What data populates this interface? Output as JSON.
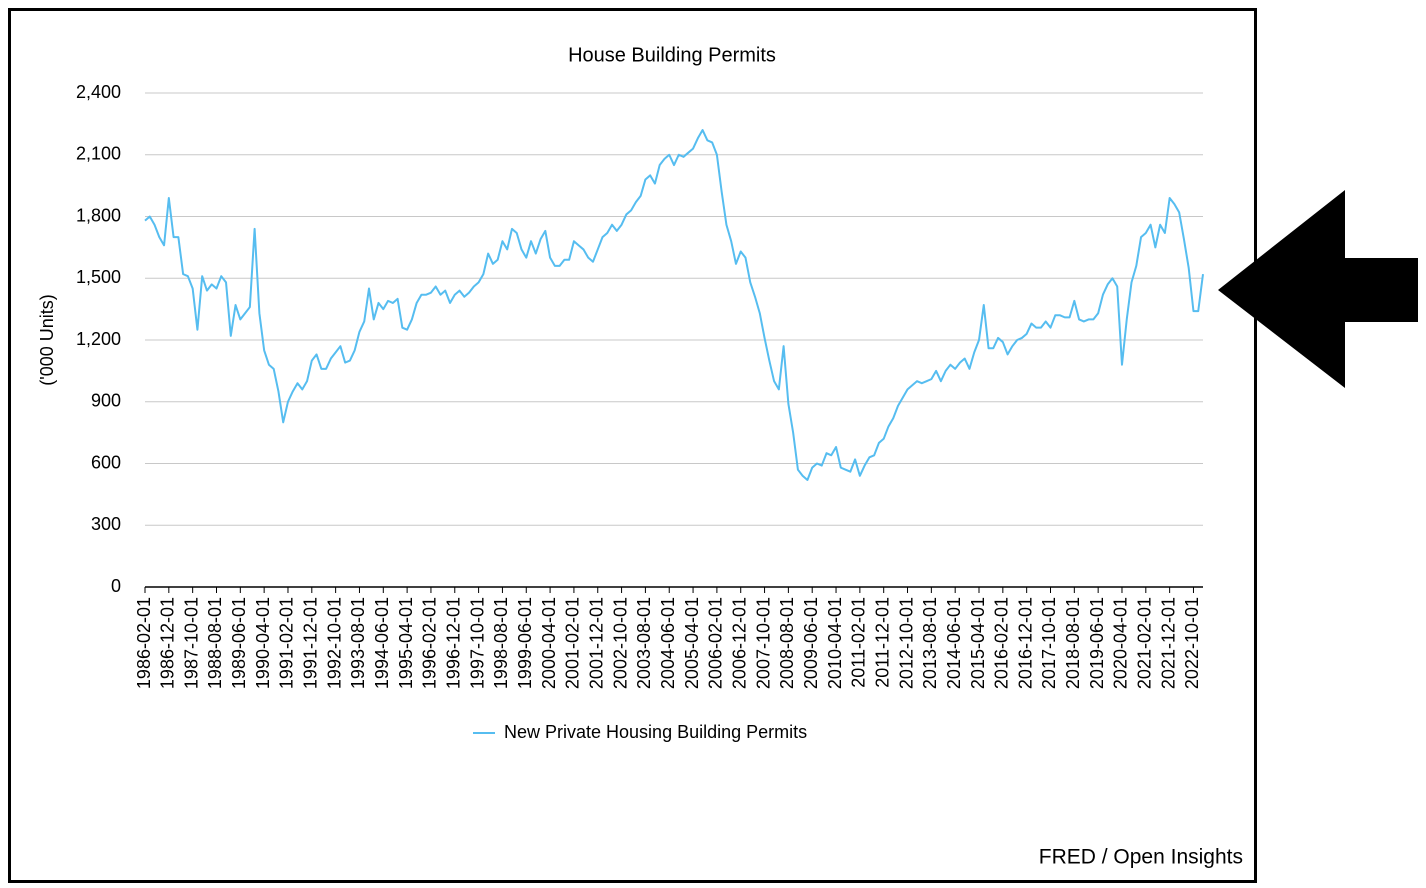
{
  "chart_data": {
    "type": "line",
    "title": "House Building Permits",
    "y_label": "('000 Units)",
    "source": "FRED / Open Insights",
    "categories": [
      "1986-02-01",
      null,
      null,
      null,
      null,
      "1986-12-01",
      null,
      null,
      null,
      null,
      "1987-10-01",
      null,
      null,
      null,
      null,
      "1988-08-01",
      null,
      null,
      null,
      null,
      "1989-06-01",
      null,
      null,
      null,
      null,
      "1990-04-01",
      null,
      null,
      null,
      null,
      "1991-02-01",
      null,
      null,
      null,
      null,
      "1991-12-01",
      null,
      null,
      null,
      null,
      "1992-10-01",
      null,
      null,
      null,
      null,
      "1993-08-01",
      null,
      null,
      null,
      null,
      "1994-06-01",
      null,
      null,
      null,
      null,
      "1995-04-01",
      null,
      null,
      null,
      null,
      "1996-02-01",
      null,
      null,
      null,
      null,
      "1996-12-01",
      null,
      null,
      null,
      null,
      "1997-10-01",
      null,
      null,
      null,
      null,
      "1998-08-01",
      null,
      null,
      null,
      null,
      "1999-06-01",
      null,
      null,
      null,
      null,
      "2000-04-01",
      null,
      null,
      null,
      null,
      "2001-02-01",
      null,
      null,
      null,
      null,
      "2001-12-01",
      null,
      null,
      null,
      null,
      "2002-10-01",
      null,
      null,
      null,
      null,
      "2003-08-01",
      null,
      null,
      null,
      null,
      "2004-06-01",
      null,
      null,
      null,
      null,
      "2005-04-01",
      null,
      null,
      null,
      null,
      "2006-02-01",
      null,
      null,
      null,
      null,
      "2006-12-01",
      null,
      null,
      null,
      null,
      "2007-10-01",
      null,
      null,
      null,
      null,
      "2008-08-01",
      null,
      null,
      null,
      null,
      "2009-06-01",
      null,
      null,
      null,
      null,
      "2010-04-01",
      null,
      null,
      null,
      null,
      "2011-02-01",
      null,
      null,
      null,
      null,
      "2011-12-01",
      null,
      null,
      null,
      null,
      "2012-10-01",
      null,
      null,
      null,
      null,
      "2013-08-01",
      null,
      null,
      null,
      null,
      "2014-06-01",
      null,
      null,
      null,
      null,
      "2015-04-01",
      null,
      null,
      null,
      null,
      "2016-02-01",
      null,
      null,
      null,
      null,
      "2016-12-01",
      null,
      null,
      null,
      null,
      "2017-10-01",
      null,
      null,
      null,
      null,
      "2018-08-01",
      null,
      null,
      null,
      null,
      "2019-06-01",
      null,
      null,
      null,
      null,
      "2020-04-01",
      null,
      null,
      null,
      null,
      "2021-02-01",
      null,
      null,
      null,
      null,
      "2021-12-01",
      null,
      null,
      null,
      null,
      "2022-10-01",
      null,
      null
    ],
    "series": [
      {
        "name": "New Private Housing Building Permits",
        "color": "#56bdf0",
        "values": [
          1780,
          1800,
          1760,
          1700,
          1660,
          1890,
          1700,
          1700,
          1520,
          1510,
          1450,
          1250,
          1510,
          1440,
          1470,
          1450,
          1510,
          1480,
          1220,
          1370,
          1300,
          1330,
          1360,
          1740,
          1330,
          1150,
          1080,
          1060,
          950,
          800,
          900,
          950,
          990,
          960,
          1000,
          1100,
          1130,
          1060,
          1060,
          1110,
          1140,
          1170,
          1090,
          1100,
          1150,
          1240,
          1290,
          1450,
          1300,
          1380,
          1350,
          1390,
          1380,
          1400,
          1260,
          1250,
          1300,
          1380,
          1420,
          1420,
          1430,
          1460,
          1420,
          1440,
          1380,
          1420,
          1440,
          1410,
          1430,
          1460,
          1480,
          1520,
          1620,
          1570,
          1590,
          1680,
          1640,
          1740,
          1720,
          1640,
          1600,
          1680,
          1620,
          1690,
          1730,
          1600,
          1560,
          1560,
          1590,
          1590,
          1680,
          1660,
          1640,
          1600,
          1580,
          1640,
          1700,
          1720,
          1760,
          1730,
          1760,
          1810,
          1830,
          1870,
          1900,
          1980,
          2000,
          1960,
          2050,
          2080,
          2100,
          2050,
          2100,
          2090,
          2110,
          2130,
          2180,
          2220,
          2170,
          2160,
          2100,
          1920,
          1760,
          1680,
          1570,
          1630,
          1600,
          1480,
          1410,
          1330,
          1210,
          1100,
          1000,
          960,
          1170,
          890,
          750,
          570,
          540,
          520,
          580,
          600,
          590,
          650,
          640,
          680,
          580,
          570,
          560,
          620,
          540,
          590,
          630,
          640,
          700,
          720,
          780,
          820,
          880,
          920,
          960,
          980,
          1000,
          990,
          1000,
          1010,
          1050,
          1000,
          1050,
          1080,
          1060,
          1090,
          1110,
          1060,
          1140,
          1200,
          1370,
          1160,
          1160,
          1210,
          1190,
          1130,
          1170,
          1200,
          1210,
          1230,
          1280,
          1260,
          1260,
          1290,
          1260,
          1320,
          1320,
          1310,
          1310,
          1390,
          1300,
          1290,
          1300,
          1300,
          1330,
          1420,
          1470,
          1500,
          1460,
          1080,
          1300,
          1480,
          1560,
          1700,
          1720,
          1760,
          1650,
          1760,
          1720,
          1890,
          1860,
          1820,
          1690,
          1550,
          1340,
          1340,
          1520
        ]
      }
    ],
    "ylim": [
      0,
      2400
    ],
    "yticks": [
      0,
      300,
      600,
      900,
      {
        "value": 1200,
        "label": "1,200"
      },
      {
        "value": 1500,
        "label": "1,500"
      },
      {
        "value": 1800,
        "label": "1,800"
      },
      {
        "value": 2100,
        "label": "2,100"
      },
      {
        "value": 2400,
        "label": "2,400"
      }
    ],
    "grid": true,
    "legend": "bottom"
  }
}
